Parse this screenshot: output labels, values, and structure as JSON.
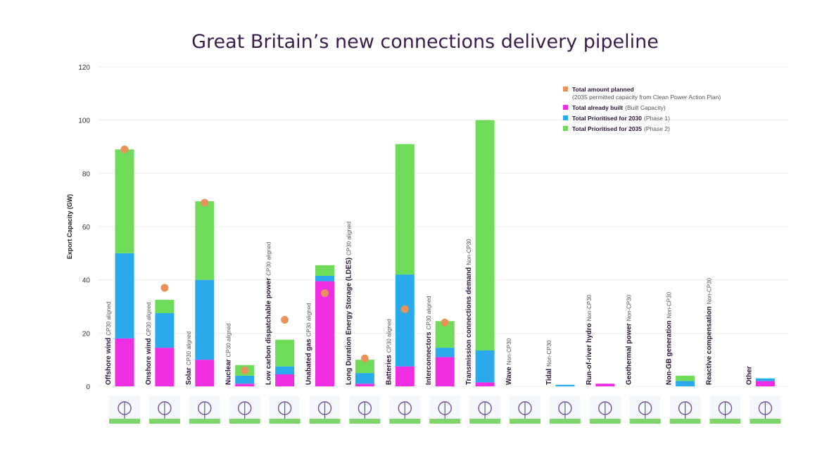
{
  "chart_data": {
    "type": "bar",
    "title": "Great Britain’s new connections delivery pipeline",
    "ylabel": "Export Capacity (GW)",
    "ylim": [
      0,
      120
    ],
    "yticks": [
      0,
      20,
      40,
      60,
      80,
      100,
      120
    ],
    "grid": true,
    "legend_position": "top-right",
    "categories": [
      {
        "name": "Offshore wind",
        "tag": "CP30 aligned"
      },
      {
        "name": "Onshore wind",
        "tag": "CP30 aligned"
      },
      {
        "name": "Solar",
        "tag": "CP30 aligned"
      },
      {
        "name": "Nuclear",
        "tag": "CP30 aligned"
      },
      {
        "name": "Low carbon dispatchable power",
        "tag": "CP30 aligned"
      },
      {
        "name": "Unabated gas",
        "tag": "CP30 aligned"
      },
      {
        "name": "Long Duration Energy Storage (LDES)",
        "tag": "CP30 aligned"
      },
      {
        "name": "Batteries",
        "tag": "CP30 aligned"
      },
      {
        "name": "Interconnectors",
        "tag": "CP30 aligned"
      },
      {
        "name": "Transmission connections demand",
        "tag": "Non-CP30"
      },
      {
        "name": "Wave",
        "tag": "Non-CP30"
      },
      {
        "name": "Tidal",
        "tag": "Non-CP30"
      },
      {
        "name": "Run-of-river hydro",
        "tag": "Non-CP30"
      },
      {
        "name": "Geothermal power",
        "tag": "Non-CP30"
      },
      {
        "name": "Non-GB generation",
        "tag": "Non-CP30"
      },
      {
        "name": "Reactive compensation",
        "tag": "Non-CP30"
      },
      {
        "name": "Other",
        "tag": ""
      }
    ],
    "series": [
      {
        "name": "Total already built",
        "name_suffix": "(Built Capacity)",
        "color": "#ee2ee0",
        "values": [
          18,
          14.5,
          10,
          1,
          4.5,
          39.5,
          1,
          7.5,
          11,
          1.5,
          0,
          0,
          1,
          0,
          0,
          0,
          2
        ]
      },
      {
        "name": "Total Prioritised for 2030",
        "name_suffix": "(Phase 1)",
        "color": "#2aa9ec",
        "values": [
          32,
          13,
          30,
          3,
          3,
          2,
          4,
          34.5,
          3.5,
          12,
          0,
          0.6,
          0,
          0,
          2,
          0,
          1
        ]
      },
      {
        "name": "Total Prioritised for 2035",
        "name_suffix": "(Phase 2)",
        "color": "#6edb59",
        "values": [
          39,
          5,
          29.5,
          4,
          10,
          4,
          5,
          49,
          10,
          86.5,
          0,
          0,
          0,
          0,
          2,
          0,
          0
        ]
      }
    ],
    "planned": {
      "name": "Total amount planned",
      "name_suffix": "(2035 permitted capacity from Clean Power Action Plan)",
      "color": "#e8935a",
      "values": [
        89,
        37,
        69,
        6,
        25,
        35,
        10.5,
        29,
        24,
        null,
        null,
        null,
        null,
        null,
        null,
        null,
        null
      ]
    }
  }
}
